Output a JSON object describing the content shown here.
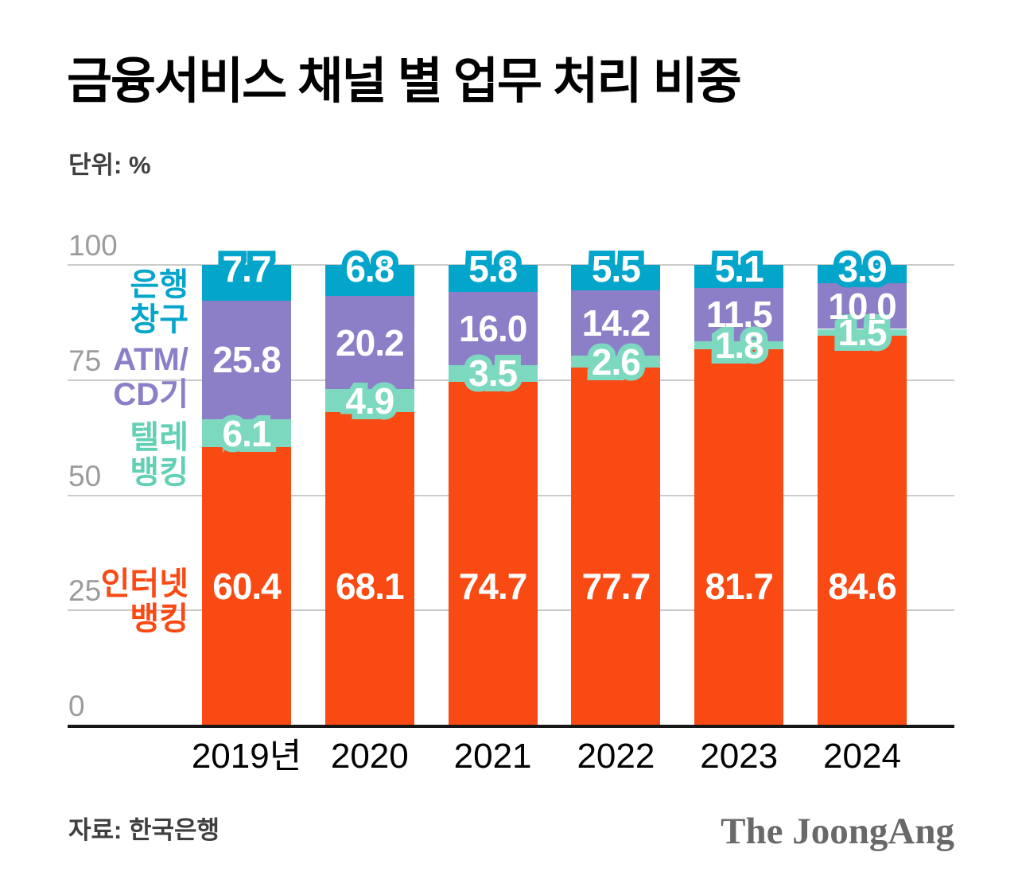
{
  "title": "금융서비스 채널 별 업무 처리 비중",
  "unit_label": "단위: %",
  "source_label": "자료: 한국은행",
  "brand": "The JoongAng",
  "colors": {
    "internet": "#FA4A14",
    "tele": "#7DD8C0",
    "atm": "#8C7EC7",
    "bank": "#04A5CB",
    "grid": "#CBCBCB",
    "tick": "#9C9C9C",
    "axis": "#171717",
    "legend_tele_text": "#62D0B4",
    "value_text": "#FFFFFF"
  },
  "legend": {
    "bank": {
      "lines": [
        "은행",
        "창구"
      ]
    },
    "atm": {
      "lines": [
        "ATM/",
        "CD기"
      ]
    },
    "tele": {
      "lines": [
        "텔레",
        "뱅킹"
      ]
    },
    "internet": {
      "lines": [
        "인터넷",
        "뱅킹"
      ]
    }
  },
  "chart_data": {
    "type": "bar",
    "stacked": true,
    "title": "금융서비스 채널 별 업무 처리 비중",
    "unit": "%",
    "categories": [
      "2019년",
      "2020",
      "2021",
      "2022",
      "2023",
      "2024"
    ],
    "series": [
      {
        "key": "internet",
        "name": "인터넷 뱅킹",
        "values": [
          60.4,
          68.1,
          74.7,
          77.7,
          81.7,
          84.6
        ],
        "labels": [
          "60.4",
          "68.1",
          "74.7",
          "77.7",
          "81.7",
          "84.6"
        ]
      },
      {
        "key": "tele",
        "name": "텔레 뱅킹",
        "values": [
          6.1,
          4.9,
          3.5,
          2.6,
          1.8,
          1.5
        ],
        "labels": [
          "6.1",
          "4.9",
          "3.5",
          "2.6",
          "1.8",
          "1.5"
        ]
      },
      {
        "key": "atm",
        "name": "ATM/CD기",
        "values": [
          25.8,
          20.2,
          16.0,
          14.2,
          11.5,
          10.0
        ],
        "labels": [
          "25.8",
          "20.2",
          "16.0",
          "14.2",
          "11.5",
          "10.0"
        ]
      },
      {
        "key": "bank",
        "name": "은행 창구",
        "values": [
          7.7,
          6.8,
          5.8,
          5.5,
          5.1,
          3.9
        ],
        "labels": [
          "7.7",
          "6.8",
          "5.8",
          "5.5",
          "5.1",
          "3.9"
        ]
      }
    ],
    "ylim": [
      0,
      100
    ],
    "yticks": [
      0,
      25,
      50,
      75,
      100
    ],
    "grid": true,
    "legend_position": "left",
    "source": "자료: 한국은행"
  }
}
